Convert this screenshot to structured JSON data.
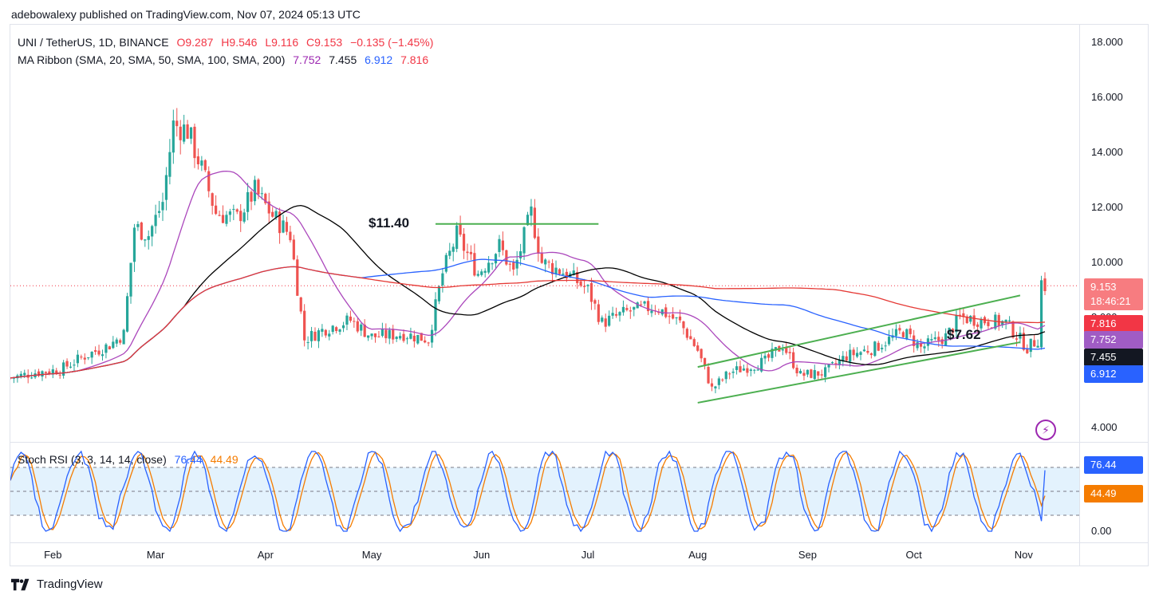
{
  "header": {
    "published": "adebowalexy published on TradingView.com, Nov 07, 2024 05:13 UTC"
  },
  "legend": {
    "symbol": "UNI / TetherUS, 1D, BINANCE",
    "o": "O9.287",
    "h": "H9.546",
    "l": "L9.116",
    "c": "C9.153",
    "chg": "−0.135 (−1.45%)",
    "ma_label": "MA Ribbon (SMA, 20, SMA, 50, SMA, 100, SMA, 200)",
    "ma20": "7.752",
    "ma50": "7.455",
    "ma100": "6.912",
    "ma200": "7.816",
    "stoch_label": "Stoch RSI (3, 3, 14, 14, close)",
    "stoch_k": "76.44",
    "stoch_d": "44.49"
  },
  "annotations": {
    "resistance": "$11.40",
    "support": "$7.62"
  },
  "price_tags": {
    "last": "9.153",
    "countdown": "18:46:21",
    "ma200": "7.816",
    "ma20": "7.752",
    "ma50": "7.455",
    "ma100": "6.912",
    "k": "76.44",
    "d": "44.49"
  },
  "footer": {
    "brand": "TradingView"
  },
  "colors": {
    "up": "#26a69a",
    "down": "#ef5350",
    "ma20": "#ab47bc",
    "ma50": "#000000",
    "ma100": "#2962ff",
    "ma200": "#e53935",
    "channel": "#4caf50",
    "stoch_k": "#2962ff",
    "stoch_d": "#f57c00",
    "stoch_band": "#e3f2fd"
  },
  "chart_data": [
    {
      "type": "candlestick",
      "title": "UNI / TetherUS, 1D, BINANCE",
      "x_ticks": [
        "Feb",
        "Mar",
        "Apr",
        "May",
        "Jun",
        "Jul",
        "Aug",
        "Sep",
        "Oct",
        "Nov"
      ],
      "y_ticks": [
        "4.000",
        "6.000",
        "8.000",
        "10.000",
        "12.000",
        "14.000",
        "16.000",
        "18.000"
      ],
      "ylim": [
        3.5,
        18.5
      ],
      "close_series": [
        {
          "x": "Jan 20",
          "y": 5.8
        },
        {
          "x": "Jan 27",
          "y": 6.0
        },
        {
          "x": "Feb 03",
          "y": 6.1
        },
        {
          "x": "Feb 10",
          "y": 6.6
        },
        {
          "x": "Feb 17",
          "y": 7.0
        },
        {
          "x": "Feb 21",
          "y": 7.4
        },
        {
          "x": "Feb 24",
          "y": 11.3
        },
        {
          "x": "Feb 28",
          "y": 11.0
        },
        {
          "x": "Mar 03",
          "y": 12.2
        },
        {
          "x": "Mar 06",
          "y": 15.0
        },
        {
          "x": "Mar 10",
          "y": 14.8
        },
        {
          "x": "Mar 14",
          "y": 13.4
        },
        {
          "x": "Mar 18",
          "y": 11.8
        },
        {
          "x": "Mar 24",
          "y": 11.6
        },
        {
          "x": "Mar 29",
          "y": 12.6
        },
        {
          "x": "Apr 03",
          "y": 11.7
        },
        {
          "x": "Apr 08",
          "y": 11.0
        },
        {
          "x": "Apr 12",
          "y": 7.2
        },
        {
          "x": "Apr 18",
          "y": 7.6
        },
        {
          "x": "Apr 25",
          "y": 7.9
        },
        {
          "x": "May 01",
          "y": 7.3
        },
        {
          "x": "May 10",
          "y": 7.4
        },
        {
          "x": "May 17",
          "y": 7.2
        },
        {
          "x": "May 21",
          "y": 9.6
        },
        {
          "x": "May 25",
          "y": 11.0
        },
        {
          "x": "May 31",
          "y": 9.6
        },
        {
          "x": "Jun 06",
          "y": 10.6
        },
        {
          "x": "Jun 10",
          "y": 9.6
        },
        {
          "x": "Jun 15",
          "y": 11.8
        },
        {
          "x": "Jun 18",
          "y": 10.0
        },
        {
          "x": "Jun 25",
          "y": 9.6
        },
        {
          "x": "Jul 01",
          "y": 9.0
        },
        {
          "x": "Jul 05",
          "y": 7.8
        },
        {
          "x": "Jul 12",
          "y": 8.2
        },
        {
          "x": "Jul 20",
          "y": 8.4
        },
        {
          "x": "Jul 27",
          "y": 7.8
        },
        {
          "x": "Aug 01",
          "y": 6.8
        },
        {
          "x": "Aug 05",
          "y": 5.4
        },
        {
          "x": "Aug 10",
          "y": 6.0
        },
        {
          "x": "Aug 20",
          "y": 6.4
        },
        {
          "x": "Aug 25",
          "y": 7.0
        },
        {
          "x": "Aug 30",
          "y": 5.9
        },
        {
          "x": "Sep 06",
          "y": 6.0
        },
        {
          "x": "Sep 12",
          "y": 6.6
        },
        {
          "x": "Sep 20",
          "y": 6.9
        },
        {
          "x": "Sep 28",
          "y": 7.5
        },
        {
          "x": "Oct 03",
          "y": 6.9
        },
        {
          "x": "Oct 10",
          "y": 7.3
        },
        {
          "x": "Oct 14",
          "y": 8.0
        },
        {
          "x": "Oct 20",
          "y": 7.9
        },
        {
          "x": "Oct 27",
          "y": 7.8
        },
        {
          "x": "Nov 02",
          "y": 6.9
        },
        {
          "x": "Nov 05",
          "y": 7.2
        },
        {
          "x": "Nov 06",
          "y": 9.3
        },
        {
          "x": "Nov 07",
          "y": 9.153
        }
      ],
      "series": [
        {
          "name": "SMA 20",
          "last": 7.752
        },
        {
          "name": "SMA 50",
          "last": 7.455
        },
        {
          "name": "SMA 100",
          "last": 6.912
        },
        {
          "name": "SMA 200",
          "last": 7.816
        }
      ],
      "annotations": [
        {
          "text": "$11.40",
          "y": 11.4
        },
        {
          "text": "$7.62",
          "y": 7.62
        }
      ]
    },
    {
      "type": "line",
      "title": "Stoch RSI (3, 3, 14, 14, close)",
      "y_ticks": [
        "0.00"
      ],
      "ylim": [
        -5,
        105
      ],
      "bands": [
        20,
        50,
        80
      ],
      "series": [
        {
          "name": "K",
          "last": 76.44
        },
        {
          "name": "D",
          "last": 44.49
        }
      ]
    }
  ]
}
